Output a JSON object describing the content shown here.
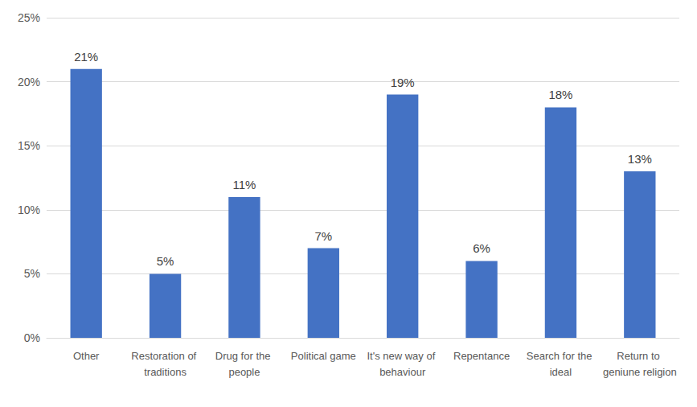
{
  "chart_data": {
    "type": "bar",
    "categories": [
      "Other",
      "Restoration of traditions",
      "Drug for the people",
      "Political game",
      "It's new way of behaviour",
      "Repentance",
      "Search for the ideal",
      "Return to geniune religion"
    ],
    "values": [
      21,
      5,
      11,
      7,
      19,
      6,
      18,
      13
    ],
    "value_labels": [
      "21%",
      "5%",
      "11%",
      "7%",
      "19%",
      "6%",
      "18%",
      "13%"
    ],
    "color": "#4472c4",
    "ylim": [
      0,
      25
    ],
    "yticks": [
      {
        "value": 0,
        "label": "0%"
      },
      {
        "value": 5,
        "label": "5%"
      },
      {
        "value": 10,
        "label": "10%"
      },
      {
        "value": 15,
        "label": "15%"
      },
      {
        "value": 20,
        "label": "20%"
      },
      {
        "value": 25,
        "label": "25%"
      }
    ],
    "grid": true,
    "data_labels": true
  }
}
